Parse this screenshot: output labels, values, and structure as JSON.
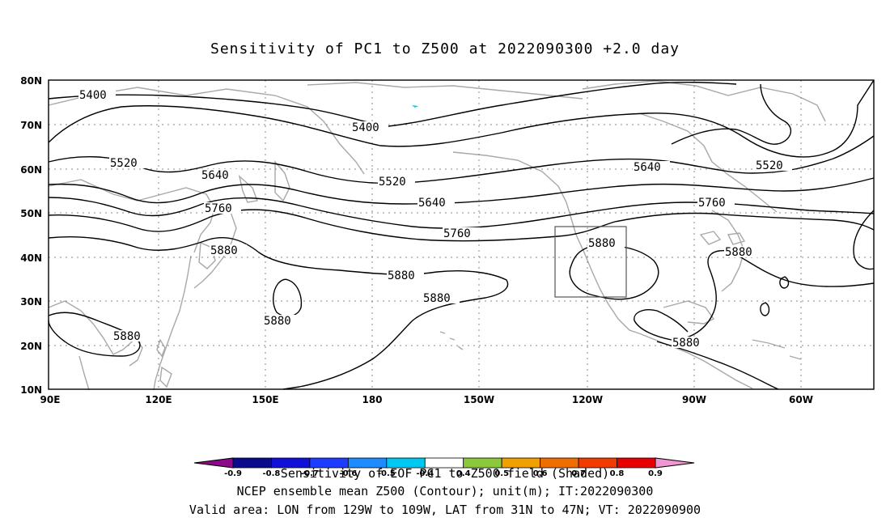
{
  "title": "Sensitivity of PC1 to Z500 at 2022090300 +2.0 day",
  "map": {
    "lat_labels": [
      "80N",
      "70N",
      "60N",
      "50N",
      "40N",
      "30N",
      "20N",
      "10N"
    ],
    "lon_labels": [
      "90E",
      "120E",
      "150E",
      "180",
      "150W",
      "120W",
      "90W",
      "60W"
    ],
    "contour_labels": [
      {
        "id": "c1",
        "text": "5400"
      },
      {
        "id": "c2",
        "text": "5400"
      },
      {
        "id": "c3",
        "text": "5520"
      },
      {
        "id": "c4",
        "text": "5520"
      },
      {
        "id": "c5",
        "text": "5520"
      },
      {
        "id": "c6",
        "text": "5640"
      },
      {
        "id": "c7",
        "text": "5640"
      },
      {
        "id": "c8",
        "text": "5640"
      },
      {
        "id": "c9",
        "text": "5760"
      },
      {
        "id": "c10",
        "text": "5760"
      },
      {
        "id": "c11",
        "text": "5760"
      },
      {
        "id": "c12",
        "text": "5880"
      },
      {
        "id": "c13",
        "text": "5880"
      },
      {
        "id": "c14",
        "text": "5880"
      },
      {
        "id": "c15",
        "text": "5880"
      },
      {
        "id": "c16",
        "text": "5880"
      },
      {
        "id": "c17",
        "text": "5880"
      },
      {
        "id": "c18",
        "text": "5880"
      },
      {
        "id": "c19",
        "text": "5880"
      }
    ],
    "box_region": {
      "lon": [
        "129W",
        "109W"
      ],
      "lat": [
        "31N",
        "47N"
      ]
    },
    "colors": {
      "contour": "#000000",
      "coast": "#a8a8a8",
      "grid": "#888888"
    }
  },
  "colorbar": {
    "ticks": [
      "-0.9",
      "-0.8",
      "-0.7",
      "-0.6",
      "-0.5",
      "-0.4",
      "0.4",
      "0.5",
      "0.6",
      "0.7",
      "0.8",
      "0.9"
    ],
    "colors": [
      "#8a0a8a",
      "#0a0a8c",
      "#1010d8",
      "#1e3cff",
      "#1e8cff",
      "#00c8f0",
      "#ffffff",
      "#8cc83c",
      "#f0a000",
      "#f06e00",
      "#f03c00",
      "#e60000",
      "#f096d2"
    ],
    "title": "Sensitivity of EOF PC1 to Z500 field (Shaded)"
  },
  "footer": {
    "line1": "NCEP ensemble mean Z500 (Contour); unit(m); IT:2022090300",
    "line2": "Valid area: LON from 129W to 109W, LAT from 31N to 47N; VT: 2022090900"
  }
}
